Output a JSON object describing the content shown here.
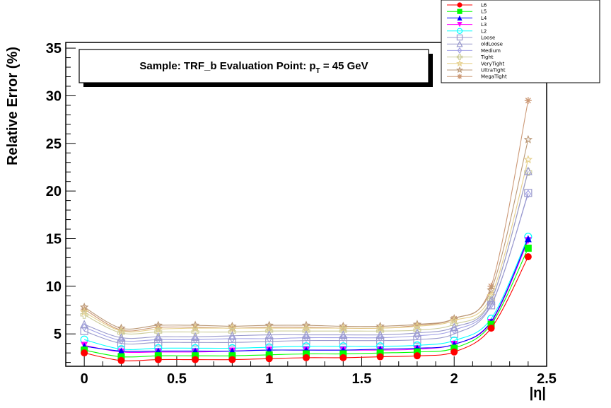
{
  "chart_data": {
    "type": "line",
    "title": "Sample: TRF_b Evaluation Point: p",
    "title_sub": "T",
    "title_tail": " = 45 GeV",
    "xlabel": "|η|",
    "ylabel": "Relative Error (%)",
    "xlim": [
      -0.1,
      2.5
    ],
    "ylim": [
      1.6,
      35.6
    ],
    "xticks": [
      "0",
      "0.5",
      "1",
      "1.5",
      "2",
      "2.5"
    ],
    "yticks": [
      "5",
      "10",
      "15",
      "20",
      "25",
      "30",
      "35"
    ],
    "grid": false,
    "legend_position": "top-right",
    "x": [
      0,
      0.2,
      0.4,
      0.6,
      0.8,
      1.0,
      1.2,
      1.4,
      1.6,
      1.8,
      2.0,
      2.2,
      2.4
    ],
    "series": [
      {
        "name": "L6",
        "color": "#ff0000",
        "marker": "circle-filled",
        "values": [
          3.0,
          2.2,
          2.3,
          2.3,
          2.3,
          2.4,
          2.5,
          2.5,
          2.6,
          2.7,
          3.1,
          5.6,
          13.1
        ]
      },
      {
        "name": "L5",
        "color": "#00ff00",
        "marker": "square-filled",
        "values": [
          3.3,
          2.6,
          2.7,
          2.7,
          2.7,
          2.8,
          2.9,
          2.9,
          3.0,
          3.1,
          3.5,
          6.0,
          14.0
        ]
      },
      {
        "name": "L4",
        "color": "#0000ff",
        "marker": "triangle-up-filled",
        "values": [
          3.7,
          3.2,
          3.2,
          3.2,
          3.2,
          3.3,
          3.3,
          3.3,
          3.4,
          3.5,
          3.9,
          6.3,
          15.0
        ]
      },
      {
        "name": "L3",
        "color": "#ff00ff",
        "marker": "triangle-down-filled",
        "values": [
          3.8,
          3.1,
          3.1,
          3.1,
          3.2,
          3.3,
          3.3,
          3.3,
          3.3,
          3.4,
          3.9,
          6.2,
          14.8
        ]
      },
      {
        "name": "L2",
        "color": "#00ffff",
        "marker": "circle-open",
        "values": [
          4.4,
          3.4,
          3.5,
          3.5,
          3.5,
          3.6,
          3.7,
          3.7,
          3.7,
          3.8,
          4.3,
          6.6,
          15.2
        ]
      },
      {
        "name": "Loose",
        "color": "#9999cc",
        "marker": "square-open",
        "values": [
          5.3,
          4.0,
          4.1,
          4.1,
          4.1,
          4.2,
          4.3,
          4.3,
          4.3,
          4.4,
          5.0,
          8.0,
          19.8
        ]
      },
      {
        "name": "oldLoose",
        "color": "#9999cc",
        "marker": "triangle-up-open",
        "values": [
          6.0,
          4.6,
          4.7,
          4.7,
          4.8,
          4.9,
          4.9,
          4.9,
          4.9,
          5.1,
          5.7,
          8.5,
          22.1
        ]
      },
      {
        "name": "Medium",
        "color": "#a0a0e6",
        "marker": "diamond-open",
        "values": [
          5.7,
          4.3,
          4.4,
          4.4,
          4.5,
          4.5,
          4.6,
          4.6,
          4.6,
          4.8,
          5.4,
          8.1,
          19.7
        ]
      },
      {
        "name": "Tight",
        "color": "#cccc99",
        "marker": "cross-open",
        "values": [
          7.0,
          5.1,
          5.2,
          5.2,
          5.2,
          5.3,
          5.3,
          5.3,
          5.3,
          5.4,
          6.0,
          8.6,
          22.0
        ]
      },
      {
        "name": "VeryTight",
        "color": "#e6d08c",
        "marker": "star-open",
        "values": [
          7.3,
          5.3,
          5.5,
          5.6,
          5.6,
          5.6,
          5.6,
          5.6,
          5.6,
          5.8,
          6.4,
          9.0,
          23.3
        ]
      },
      {
        "name": "UltraTight",
        "color": "#bb9977",
        "marker": "star-open",
        "values": [
          7.8,
          5.6,
          5.9,
          5.9,
          5.8,
          5.9,
          5.9,
          5.8,
          5.8,
          6.0,
          6.6,
          9.6,
          25.4
        ]
      },
      {
        "name": "MegaTight",
        "color": "#cc9977",
        "marker": "asterisk",
        "values": [
          7.6,
          5.4,
          5.7,
          5.7,
          5.6,
          5.7,
          5.7,
          5.6,
          5.6,
          5.9,
          6.6,
          10.0,
          29.5
        ]
      }
    ]
  }
}
